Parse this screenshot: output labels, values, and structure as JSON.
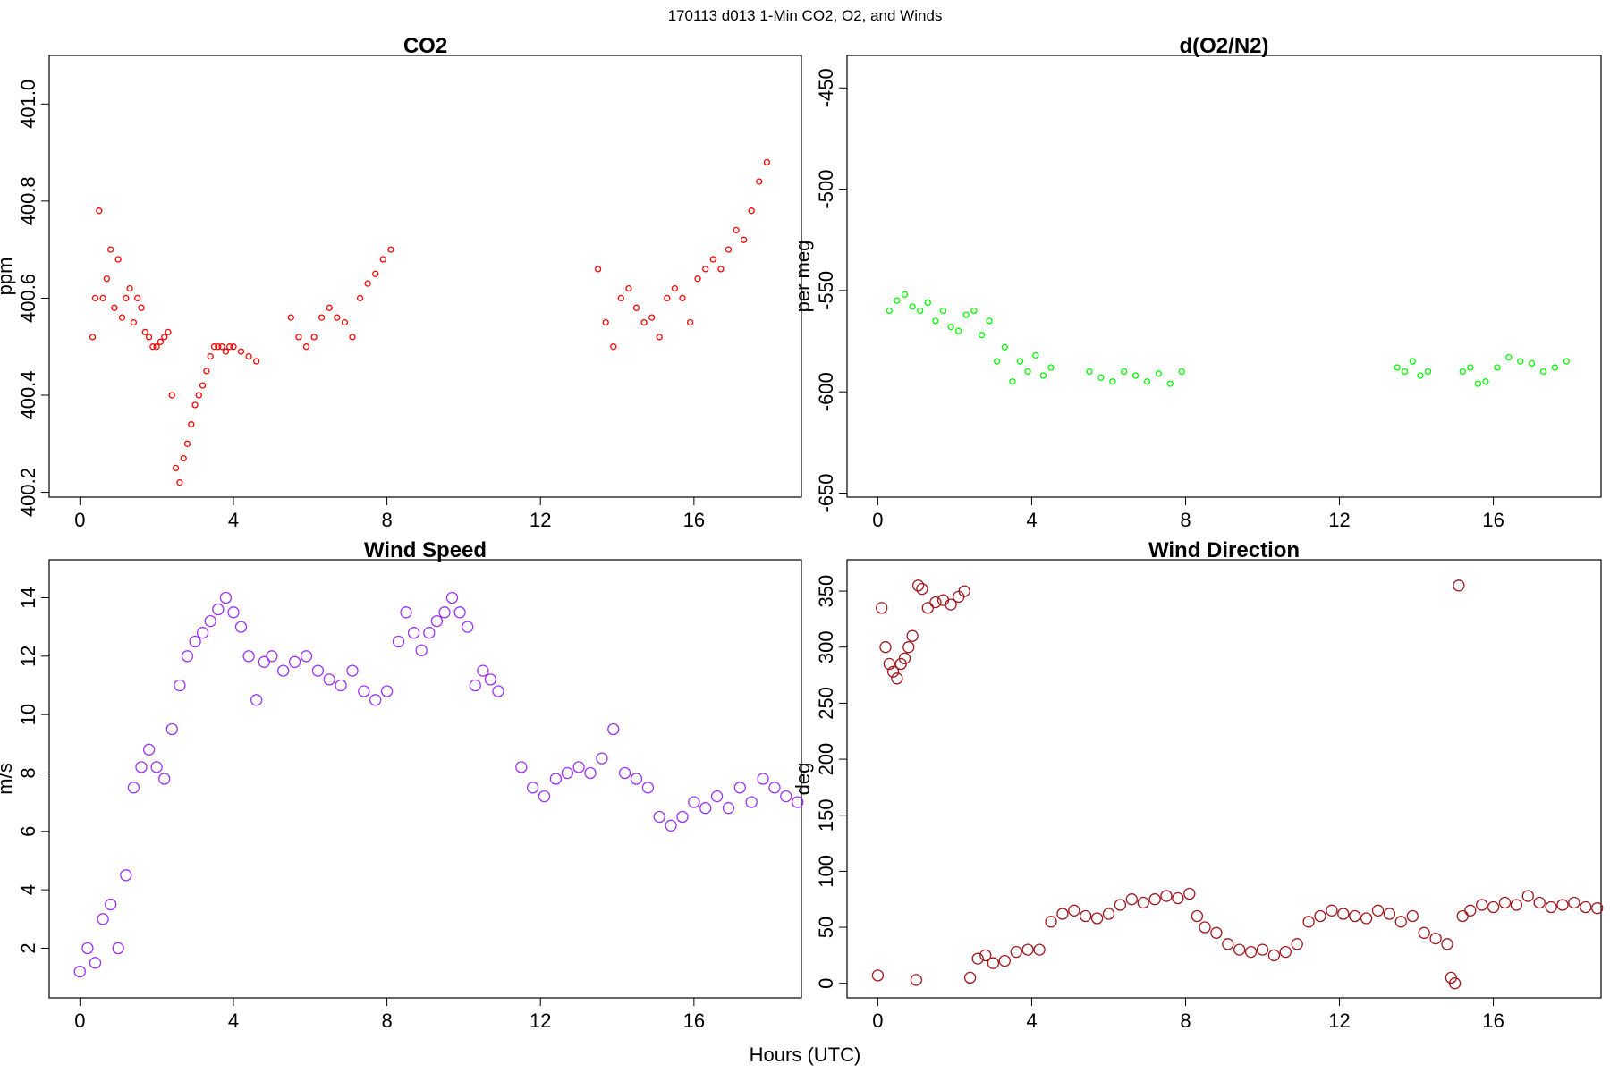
{
  "figure": {
    "supertitle": "170113   d013   1-Min CO2, O2, and Winds",
    "xlabel": "Hours (UTC)"
  },
  "chart_data": [
    {
      "type": "scatter",
      "title": "CO2",
      "xlabel": "Hours (UTC)",
      "ylabel": "ppm",
      "xlim": [
        -0.8,
        18.8
      ],
      "ylim": [
        400.19,
        401.1
      ],
      "xticks": [
        0,
        4,
        8,
        12,
        16
      ],
      "yticks": [
        400.2,
        400.4,
        400.6,
        400.8,
        401.0
      ],
      "ytick_labels": [
        "400.2",
        "400.4",
        "400.6",
        "400.8",
        "401.0"
      ],
      "marker": "open circle",
      "color": "#ff0000",
      "grid": false,
      "x": [
        0.33,
        0.4,
        0.5,
        0.6,
        0.7,
        0.8,
        0.9,
        1.0,
        1.1,
        1.2,
        1.3,
        1.4,
        1.5,
        1.6,
        1.7,
        1.8,
        1.9,
        2.0,
        2.1,
        2.2,
        2.3,
        2.4,
        2.5,
        2.6,
        2.7,
        2.8,
        2.9,
        3.0,
        3.1,
        3.2,
        3.3,
        3.4,
        3.5,
        3.6,
        3.7,
        3.8,
        3.9,
        4.0,
        4.2,
        4.4,
        4.6,
        5.5,
        5.7,
        5.9,
        6.1,
        6.3,
        6.5,
        6.7,
        6.9,
        7.1,
        7.3,
        7.5,
        7.7,
        7.9,
        8.1,
        13.5,
        13.7,
        13.9,
        14.1,
        14.3,
        14.5,
        14.7,
        14.9,
        15.1,
        15.3,
        15.5,
        15.7,
        15.9,
        16.1,
        16.3,
        16.5,
        16.7,
        16.9,
        17.1,
        17.3,
        17.5,
        17.7,
        17.9
      ],
      "y": [
        400.52,
        400.6,
        400.78,
        400.6,
        400.64,
        400.7,
        400.58,
        400.68,
        400.56,
        400.6,
        400.62,
        400.55,
        400.6,
        400.58,
        400.53,
        400.52,
        400.5,
        400.5,
        400.51,
        400.52,
        400.53,
        400.4,
        400.25,
        400.22,
        400.27,
        400.3,
        400.34,
        400.38,
        400.4,
        400.42,
        400.45,
        400.48,
        400.5,
        400.5,
        400.5,
        400.49,
        400.5,
        400.5,
        400.49,
        400.48,
        400.47,
        400.56,
        400.52,
        400.5,
        400.52,
        400.56,
        400.58,
        400.56,
        400.55,
        400.52,
        400.6,
        400.63,
        400.65,
        400.68,
        400.7,
        400.66,
        400.55,
        400.5,
        400.6,
        400.62,
        400.58,
        400.55,
        400.56,
        400.52,
        400.6,
        400.62,
        400.6,
        400.55,
        400.64,
        400.66,
        400.68,
        400.66,
        400.7,
        400.74,
        400.72,
        400.78,
        400.84,
        400.88
      ]
    },
    {
      "type": "scatter",
      "title": "d(O2/N2)",
      "xlabel": "Hours (UTC)",
      "ylabel": "per meg",
      "xlim": [
        -0.8,
        18.8
      ],
      "ylim": [
        -652,
        -434
      ],
      "xticks": [
        0,
        4,
        8,
        12,
        16
      ],
      "yticks": [
        -650,
        -600,
        -550,
        -500,
        -450
      ],
      "ytick_labels": [
        "-650",
        "-600",
        "-550",
        "-500",
        "-450"
      ],
      "marker": "open circle",
      "color": "#00ff00",
      "grid": false,
      "x": [
        0.3,
        0.5,
        0.7,
        0.9,
        1.1,
        1.3,
        1.5,
        1.7,
        1.9,
        2.1,
        2.3,
        2.5,
        2.7,
        2.9,
        3.1,
        3.3,
        3.5,
        3.7,
        3.9,
        4.1,
        4.3,
        4.5,
        5.5,
        5.8,
        6.1,
        6.4,
        6.7,
        7.0,
        7.3,
        7.6,
        7.9,
        13.5,
        13.7,
        13.9,
        14.1,
        14.3,
        15.2,
        15.4,
        15.6,
        15.8,
        16.1,
        16.4,
        16.7,
        17.0,
        17.3,
        17.6,
        17.9
      ],
      "y": [
        -560,
        -555,
        -552,
        -558,
        -560,
        -556,
        -565,
        -560,
        -568,
        -570,
        -562,
        -560,
        -572,
        -565,
        -585,
        -578,
        -595,
        -585,
        -590,
        -582,
        -592,
        -588,
        -590,
        -593,
        -595,
        -590,
        -592,
        -595,
        -591,
        -596,
        -590,
        -588,
        -590,
        -585,
        -592,
        -590,
        -590,
        -588,
        -596,
        -595,
        -588,
        -583,
        -585,
        -586,
        -590,
        -588,
        -585
      ]
    },
    {
      "type": "scatter",
      "title": "Wind Speed",
      "xlabel": "Hours (UTC)",
      "ylabel": "m/s",
      "xlim": [
        -0.8,
        18.8
      ],
      "ylim": [
        0.3,
        15.3
      ],
      "xticks": [
        0,
        4,
        8,
        12,
        16
      ],
      "yticks": [
        2,
        4,
        6,
        8,
        10,
        12,
        14
      ],
      "ytick_labels": [
        "2",
        "4",
        "6",
        "8",
        "10",
        "12",
        "14"
      ],
      "marker": "open circle",
      "color": "#9b30ff",
      "grid": false,
      "x": [
        0.0,
        0.2,
        0.4,
        0.6,
        0.8,
        1.0,
        1.2,
        1.4,
        1.6,
        1.8,
        2.0,
        2.2,
        2.4,
        2.6,
        2.8,
        3.0,
        3.2,
        3.4,
        3.6,
        3.8,
        4.0,
        4.2,
        4.4,
        4.6,
        4.8,
        5.0,
        5.3,
        5.6,
        5.9,
        6.2,
        6.5,
        6.8,
        7.1,
        7.4,
        7.7,
        8.0,
        8.3,
        8.5,
        8.7,
        8.9,
        9.1,
        9.3,
        9.5,
        9.7,
        9.9,
        10.1,
        10.3,
        10.5,
        10.7,
        10.9,
        11.5,
        11.8,
        12.1,
        12.4,
        12.7,
        13.0,
        13.3,
        13.6,
        13.9,
        14.2,
        14.5,
        14.8,
        15.1,
        15.4,
        15.7,
        16.0,
        16.3,
        16.6,
        16.9,
        17.2,
        17.5,
        17.8,
        18.1,
        18.4,
        18.7
      ],
      "y": [
        1.2,
        2.0,
        1.5,
        3.0,
        3.5,
        2.0,
        4.5,
        7.5,
        8.2,
        8.8,
        8.2,
        7.8,
        9.5,
        11.0,
        12.0,
        12.5,
        12.8,
        13.2,
        13.6,
        14.0,
        13.5,
        13.0,
        12.0,
        10.5,
        11.8,
        12.0,
        11.5,
        11.8,
        12.0,
        11.5,
        11.2,
        11.0,
        11.5,
        10.8,
        10.5,
        10.8,
        12.5,
        13.5,
        12.8,
        12.2,
        12.8,
        13.2,
        13.5,
        14.0,
        13.5,
        13.0,
        11.0,
        11.5,
        11.2,
        10.8,
        8.2,
        7.5,
        7.2,
        7.8,
        8.0,
        8.2,
        8.0,
        8.5,
        9.5,
        8.0,
        7.8,
        7.5,
        6.5,
        6.2,
        6.5,
        7.0,
        6.8,
        7.2,
        6.8,
        7.5,
        7.0,
        7.8,
        7.5,
        7.2,
        7.0
      ]
    },
    {
      "type": "scatter",
      "title": "Wind Direction",
      "xlabel": "Hours (UTC)",
      "ylabel": "deg",
      "xlim": [
        -0.8,
        18.8
      ],
      "ylim": [
        -13,
        378
      ],
      "xticks": [
        0,
        4,
        8,
        12,
        16
      ],
      "yticks": [
        0,
        50,
        100,
        150,
        200,
        250,
        300,
        350
      ],
      "ytick_labels": [
        "0",
        "50",
        "100",
        "150",
        "200",
        "250",
        "300",
        "350"
      ],
      "marker": "open circle",
      "color": "#a0151a",
      "grid": false,
      "x": [
        0.0,
        0.1,
        0.2,
        0.3,
        0.4,
        0.5,
        0.6,
        0.7,
        0.8,
        0.9,
        1.0,
        1.05,
        1.15,
        1.3,
        1.5,
        1.7,
        1.9,
        2.1,
        2.25,
        2.4,
        2.6,
        2.8,
        3.0,
        3.3,
        3.6,
        3.9,
        4.2,
        4.5,
        4.8,
        5.1,
        5.4,
        5.7,
        6.0,
        6.3,
        6.6,
        6.9,
        7.2,
        7.5,
        7.8,
        8.1,
        8.3,
        8.5,
        8.8,
        9.1,
        9.4,
        9.7,
        10.0,
        10.3,
        10.6,
        10.9,
        11.2,
        11.5,
        11.8,
        12.1,
        12.4,
        12.7,
        13.0,
        13.3,
        13.6,
        13.9,
        14.2,
        14.5,
        14.8,
        14.9,
        15.0,
        15.1,
        15.2,
        15.4,
        15.7,
        16.0,
        16.3,
        16.6,
        16.9,
        17.2,
        17.5,
        17.8,
        18.1,
        18.4,
        18.7
      ],
      "y": [
        7,
        335,
        300,
        285,
        278,
        272,
        285,
        290,
        300,
        310,
        3,
        355,
        352,
        335,
        340,
        342,
        338,
        345,
        350,
        5,
        22,
        25,
        18,
        20,
        28,
        30,
        30,
        55,
        62,
        65,
        60,
        58,
        62,
        70,
        75,
        72,
        75,
        78,
        76,
        80,
        60,
        50,
        45,
        35,
        30,
        28,
        30,
        25,
        28,
        35,
        55,
        60,
        65,
        62,
        60,
        58,
        65,
        62,
        55,
        60,
        45,
        40,
        35,
        5,
        0,
        355,
        60,
        65,
        70,
        68,
        72,
        70,
        78,
        72,
        68,
        70,
        72,
        68,
        67
      ]
    }
  ]
}
